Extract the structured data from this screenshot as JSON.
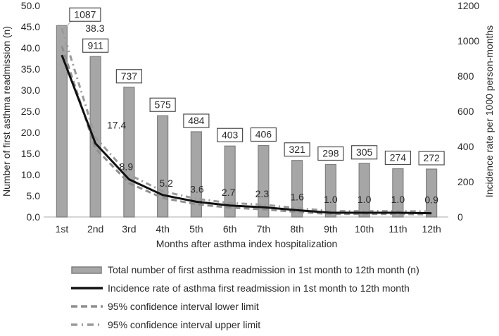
{
  "chart_data": {
    "type": "combo",
    "title": "",
    "categories": [
      "1st",
      "2nd",
      "3rd",
      "4th",
      "5th",
      "6th",
      "7th",
      "8th",
      "9th",
      "10th",
      "11th",
      "12th"
    ],
    "bar_series": {
      "name": "Total number of first asthma readmission in 1st month to 12th month (n)",
      "axis": "right",
      "values": [
        1087,
        911,
        737,
        575,
        484,
        403,
        406,
        321,
        298,
        305,
        274,
        272
      ],
      "value_labels": [
        "1087",
        "911",
        "737",
        "575",
        "484",
        "403",
        "406",
        "321",
        "298",
        "305",
        "274",
        "272"
      ],
      "labels_boxed": true
    },
    "line_series": [
      {
        "name": "Incidence rate of asthma first readmission in 1st month to 12th month",
        "axis": "left",
        "style": "solid",
        "color": "#111111",
        "values": [
          38.3,
          17.4,
          8.9,
          5.2,
          3.6,
          2.7,
          2.3,
          1.6,
          1.0,
          1.0,
          1.0,
          0.9
        ],
        "value_labels": [
          "38.3",
          "17.4",
          "8.9",
          "5.2",
          "3.6",
          "2.7",
          "2.3",
          "1.6",
          "1.0",
          "1.0",
          "1.0",
          "0.9"
        ]
      },
      {
        "name": "95% confidence interval lower limit",
        "axis": "left",
        "style": "dashed",
        "color": "#8f8f8f",
        "values": [
          40.4,
          16.2,
          8.0,
          4.5,
          3.0,
          2.2,
          1.8,
          1.2,
          0.7,
          0.7,
          0.7,
          0.6
        ],
        "value_labels": []
      },
      {
        "name": "95% confidence interval upper limit",
        "axis": "left",
        "style": "dashdot",
        "color": "#9a9a9a",
        "values": [
          44.6,
          18.8,
          10.0,
          6.1,
          4.3,
          3.3,
          2.9,
          2.1,
          1.4,
          1.4,
          1.4,
          1.3
        ],
        "value_labels": []
      }
    ],
    "left_axis": {
      "label": "Number of first asthma readmission (n)",
      "min": 0,
      "max": 50,
      "step": 5
    },
    "right_axis": {
      "label": "Incidence rate per 1000 person-months",
      "min": 0,
      "max": 1200,
      "step": 200
    },
    "xlabel": "Months after asthma index hospitalization",
    "grid": false,
    "legend_position": "bottom-left",
    "colors": {
      "bar_fill": "#a6a6a6",
      "bar_border": "#7f7f7f",
      "axis_line": "#c8c8c8",
      "text": "#2b2b2b",
      "box_fill": "#ffffff",
      "box_border": "#4d4d4d"
    }
  },
  "legend": {
    "items": [
      {
        "label": "Total number of first asthma readmission in 1st month to 12th month (n)",
        "swatch": "bar"
      },
      {
        "label": "Incidence rate of asthma first readmission in 1st month to 12th month",
        "swatch": "solid-line"
      },
      {
        "label": "95% confidence interval lower limit",
        "swatch": "dashed-line"
      },
      {
        "label": "95% confidence interval upper limit",
        "swatch": "dashdot-line"
      }
    ]
  }
}
